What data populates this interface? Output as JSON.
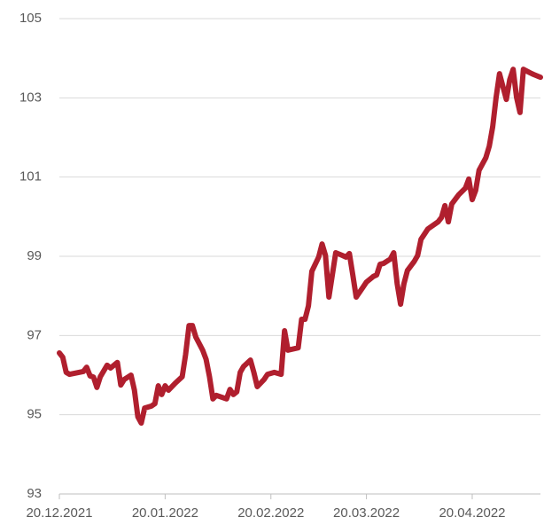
{
  "chart_data": {
    "type": "line",
    "x": [
      "2021-12-20",
      "2021-12-21",
      "2021-12-22",
      "2021-12-23",
      "2021-12-27",
      "2021-12-28",
      "2021-12-29",
      "2021-12-30",
      "2021-12-31",
      "2022-01-01",
      "2022-01-03",
      "2022-01-04",
      "2022-01-06",
      "2022-01-07",
      "2022-01-08",
      "2022-01-10",
      "2022-01-11",
      "2022-01-12",
      "2022-01-13",
      "2022-01-14",
      "2022-01-16",
      "2022-01-17",
      "2022-01-18",
      "2022-01-19",
      "2022-01-20",
      "2022-01-21",
      "2022-01-23",
      "2022-01-25",
      "2022-01-26",
      "2022-01-27",
      "2022-01-28",
      "2022-01-29",
      "2022-01-31",
      "2022-02-01",
      "2022-02-02",
      "2022-02-03",
      "2022-02-04",
      "2022-02-07",
      "2022-02-08",
      "2022-02-09",
      "2022-02-10",
      "2022-02-11",
      "2022-02-12",
      "2022-02-14",
      "2022-02-15",
      "2022-02-16",
      "2022-02-18",
      "2022-02-19",
      "2022-02-21",
      "2022-02-23",
      "2022-02-24",
      "2022-02-25",
      "2022-02-28",
      "2022-03-01",
      "2022-03-02",
      "2022-03-03",
      "2022-03-04",
      "2022-03-06",
      "2022-03-07",
      "2022-03-08",
      "2022-03-09",
      "2022-03-11",
      "2022-03-13",
      "2022-03-14",
      "2022-03-15",
      "2022-03-16",
      "2022-03-17",
      "2022-03-19",
      "2022-03-20",
      "2022-03-22",
      "2022-03-23",
      "2022-03-24",
      "2022-03-25",
      "2022-03-27",
      "2022-03-28",
      "2022-03-29",
      "2022-03-30",
      "2022-03-31",
      "2022-04-01",
      "2022-04-03",
      "2022-04-04",
      "2022-04-05",
      "2022-04-07",
      "2022-04-10",
      "2022-04-11",
      "2022-04-12",
      "2022-04-13",
      "2022-04-14",
      "2022-04-16",
      "2022-04-18",
      "2022-04-19",
      "2022-04-20",
      "2022-04-21",
      "2022-04-22",
      "2022-04-24",
      "2022-04-25",
      "2022-04-26",
      "2022-04-27",
      "2022-04-28",
      "2022-04-30",
      "2022-05-01",
      "2022-05-02",
      "2022-05-03",
      "2022-05-04",
      "2022-05-05",
      "2022-05-07",
      "2022-05-08",
      "2022-05-10"
    ],
    "series": [
      {
        "color": "#b01f2e",
        "values": [
          96.56,
          96.45,
          96.07,
          96.02,
          96.09,
          96.2,
          95.98,
          95.95,
          95.69,
          95.96,
          96.25,
          96.18,
          96.32,
          95.75,
          95.89,
          96.0,
          95.62,
          94.95,
          94.79,
          95.17,
          95.22,
          95.28,
          95.73,
          95.51,
          95.73,
          95.62,
          95.8,
          95.96,
          96.52,
          97.25,
          97.25,
          96.96,
          96.63,
          96.4,
          95.96,
          95.4,
          95.49,
          95.4,
          95.64,
          95.51,
          95.58,
          96.07,
          96.22,
          96.38,
          96.07,
          95.71,
          95.89,
          96.02,
          96.07,
          96.02,
          97.12,
          96.63,
          96.69,
          97.41,
          97.41,
          97.75,
          98.62,
          98.98,
          99.31,
          99.02,
          97.97,
          99.09,
          99.02,
          98.98,
          99.07,
          98.53,
          97.97,
          98.22,
          98.35,
          98.49,
          98.53,
          98.8,
          98.82,
          98.93,
          99.09,
          98.31,
          97.79,
          98.31,
          98.64,
          98.87,
          99.02,
          99.43,
          99.69,
          99.87,
          99.98,
          100.28,
          99.87,
          100.32,
          100.55,
          100.72,
          100.95,
          100.43,
          100.66,
          101.17,
          101.49,
          101.78,
          102.27,
          103.01,
          103.61,
          102.96,
          103.46,
          103.72,
          103.01,
          102.63,
          103.72,
          103.63,
          103.59,
          103.52
        ]
      }
    ],
    "xlim": [
      "2021-12-20",
      "2022-05-10"
    ],
    "xticks": [
      {
        "value": "2021-12-20",
        "label": "20.12.2021"
      },
      {
        "value": "2022-01-20",
        "label": "20.01.2022"
      },
      {
        "value": "2022-02-20",
        "label": "20.02.2022"
      },
      {
        "value": "2022-03-20",
        "label": "20.03.2022"
      },
      {
        "value": "2022-04-20",
        "label": "20.04.2022"
      }
    ],
    "ylim": [
      93,
      105
    ],
    "yticks": [
      93,
      95,
      97,
      99,
      101,
      103,
      105
    ],
    "grid": true
  }
}
